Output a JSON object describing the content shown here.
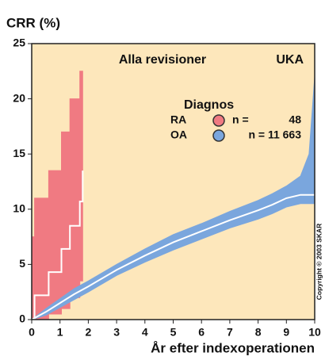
{
  "chart_data": {
    "type": "line",
    "ylabel": "CRR (%)",
    "xlabel": "År efter indexoperationen",
    "title": "Alla revisioner",
    "subtitle": "UKA",
    "legend_title": "Diagnos",
    "n_prefix": "n =",
    "copyright": "Copyright © 2003 SKAR",
    "background": "#fde7bb",
    "xlim": [
      0,
      10
    ],
    "xticks": [
      0,
      1,
      2,
      3,
      4,
      5,
      6,
      7,
      8,
      9,
      10
    ],
    "ylim": [
      0,
      25
    ],
    "yticks": [
      0,
      5,
      10,
      15,
      20,
      25
    ],
    "series": [
      {
        "name": "RA",
        "color": "#f07a82",
        "step": true,
        "n": 48,
        "x": [
          0,
          0.1,
          0.6,
          1.05,
          1.35,
          1.7,
          1.8
        ],
        "values": [
          0,
          2.2,
          4.3,
          6.4,
          8.5,
          10.7,
          13.5
        ],
        "lower": [
          0,
          0,
          0.5,
          1,
          2,
          3.5,
          5
        ],
        "upper": [
          7.5,
          11,
          13.5,
          17,
          20,
          22.5,
          22.5
        ]
      },
      {
        "name": "OA",
        "color": "#7aa6dd",
        "step": false,
        "n": 11663,
        "n_label": "n = 11 663",
        "x": [
          0,
          0.5,
          1,
          1.5,
          2,
          3,
          4,
          5,
          6,
          7,
          8,
          8.5,
          9,
          9.5,
          9.8,
          10
        ],
        "values": [
          0,
          0.7,
          1.5,
          2.3,
          3,
          4.5,
          5.8,
          7,
          8,
          9,
          9.9,
          10.4,
          11,
          11.3,
          11.3,
          11.3
        ],
        "lower": [
          0,
          0.4,
          1.1,
          1.8,
          2.5,
          4,
          5.2,
          6.3,
          7.3,
          8.3,
          9.1,
          9.6,
          10.2,
          10.5,
          10.5,
          10.5
        ],
        "upper": [
          0,
          1.0,
          1.9,
          2.8,
          3.5,
          5.0,
          6.4,
          7.7,
          8.7,
          9.8,
          10.8,
          11.4,
          12.1,
          13.0,
          15,
          22
        ]
      }
    ]
  }
}
